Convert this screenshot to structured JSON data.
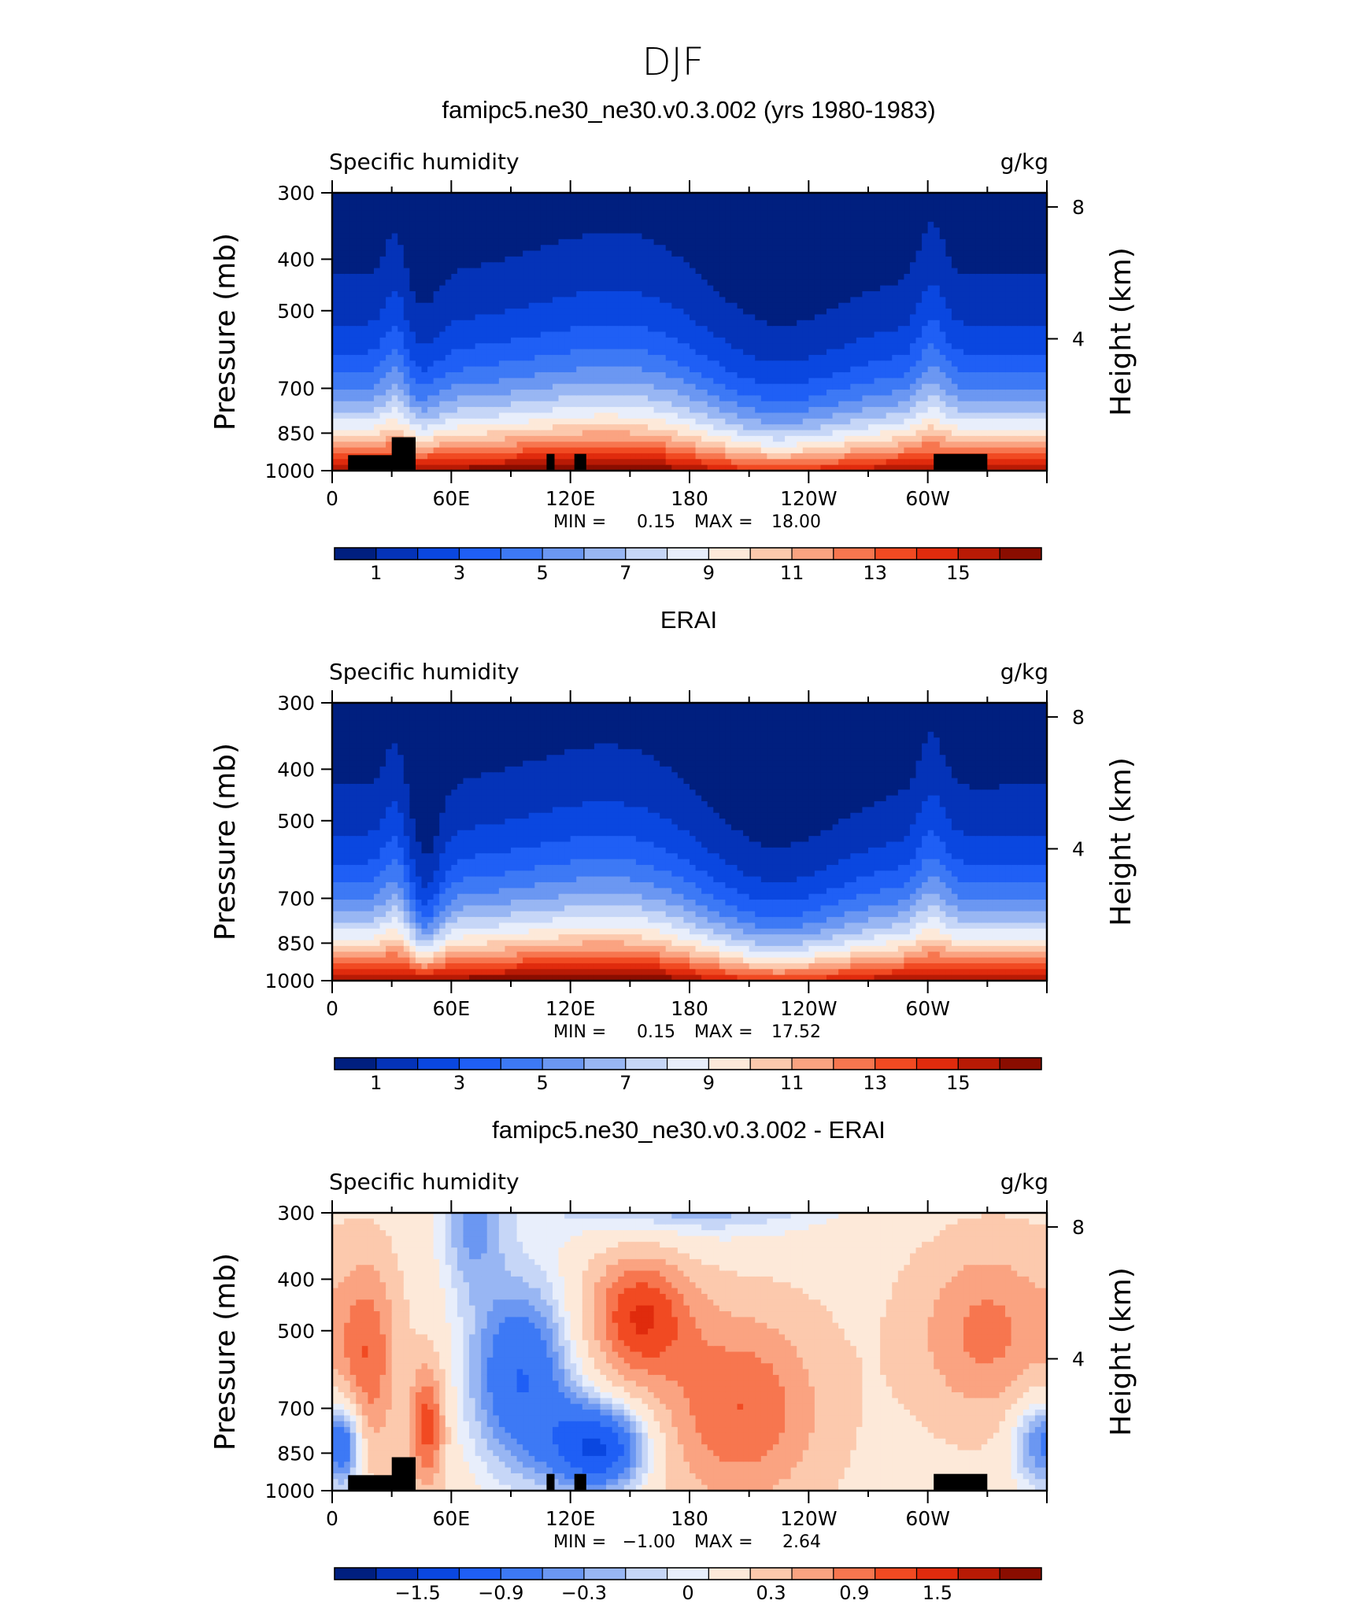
{
  "page": {
    "title": "DJF"
  },
  "chart_data": [
    {
      "type": "heatmap",
      "title": "famipc5.ne30_ne30.v0.3.002 (yrs 1980-1983)",
      "left_string": "Specific humidity",
      "right_string": "g/kg",
      "ylabel": "Pressure (mb)",
      "ylabel_right": "Height (km)",
      "x_ticks": [
        "0",
        "60E",
        "120E",
        "180",
        "120W",
        "60W"
      ],
      "y_ticks": [
        "300",
        "400",
        "500",
        "700",
        "850",
        "1000"
      ],
      "y_right_ticks": [
        "8",
        "4"
      ],
      "y_scale": "log-pressure",
      "min_label": "MIN =",
      "min_value": "0.15",
      "max_label": "MAX =",
      "max_value": "18.00",
      "colorbar_labels": [
        "1",
        "3",
        "5",
        "7",
        "9",
        "11",
        "13",
        "15"
      ],
      "colorbar_colors": [
        "#001f7f",
        "#0433b8",
        "#0a47e0",
        "#1f5ff5",
        "#3d79f5",
        "#6b97f2",
        "#98b6f3",
        "#c6d6f7",
        "#e8eefb",
        "#fde9d9",
        "#fcc9ad",
        "#faa381",
        "#f7764f",
        "#f14a22",
        "#e02b0d",
        "#b81a05",
        "#8a0d00"
      ]
    },
    {
      "type": "heatmap",
      "title": "ERAI",
      "left_string": "Specific humidity",
      "right_string": "g/kg",
      "ylabel": "Pressure (mb)",
      "ylabel_right": "Height (km)",
      "x_ticks": [
        "0",
        "60E",
        "120E",
        "180",
        "120W",
        "60W"
      ],
      "y_ticks": [
        "300",
        "400",
        "500",
        "700",
        "850",
        "1000"
      ],
      "y_right_ticks": [
        "8",
        "4"
      ],
      "y_scale": "log-pressure",
      "min_label": "MIN =",
      "min_value": "0.15",
      "max_label": "MAX =",
      "max_value": "17.52",
      "colorbar_labels": [
        "1",
        "3",
        "5",
        "7",
        "9",
        "11",
        "13",
        "15"
      ],
      "colorbar_colors": [
        "#001f7f",
        "#0433b8",
        "#0a47e0",
        "#1f5ff5",
        "#3d79f5",
        "#6b97f2",
        "#98b6f3",
        "#c6d6f7",
        "#e8eefb",
        "#fde9d9",
        "#fcc9ad",
        "#faa381",
        "#f7764f",
        "#f14a22",
        "#e02b0d",
        "#b81a05",
        "#8a0d00"
      ]
    },
    {
      "type": "heatmap",
      "title": "famipc5.ne30_ne30.v0.3.002 - ERAI",
      "left_string": "Specific humidity",
      "right_string": "g/kg",
      "ylabel": "Pressure (mb)",
      "ylabel_right": "Height (km)",
      "x_ticks": [
        "0",
        "60E",
        "120E",
        "180",
        "120W",
        "60W"
      ],
      "y_ticks": [
        "300",
        "400",
        "500",
        "700",
        "850",
        "1000"
      ],
      "y_right_ticks": [
        "8",
        "4"
      ],
      "y_scale": "log-pressure",
      "min_label": "MIN =",
      "min_value": "−1.00",
      "max_label": "MAX =",
      "max_value": "2.64",
      "colorbar_labels": [
        "−1.5",
        "−0.9",
        "−0.3",
        "0",
        "0.3",
        "0.9",
        "1.5"
      ],
      "colorbar_colors": [
        "#001f7f",
        "#0433b8",
        "#0a47e0",
        "#1f5ff5",
        "#3d79f5",
        "#6b97f2",
        "#98b6f3",
        "#c6d6f7",
        "#e8eefb",
        "#fde9d9",
        "#fcc9ad",
        "#faa381",
        "#f7764f",
        "#f14a22",
        "#e02b0d",
        "#b81a05",
        "#8a0d00"
      ]
    }
  ]
}
